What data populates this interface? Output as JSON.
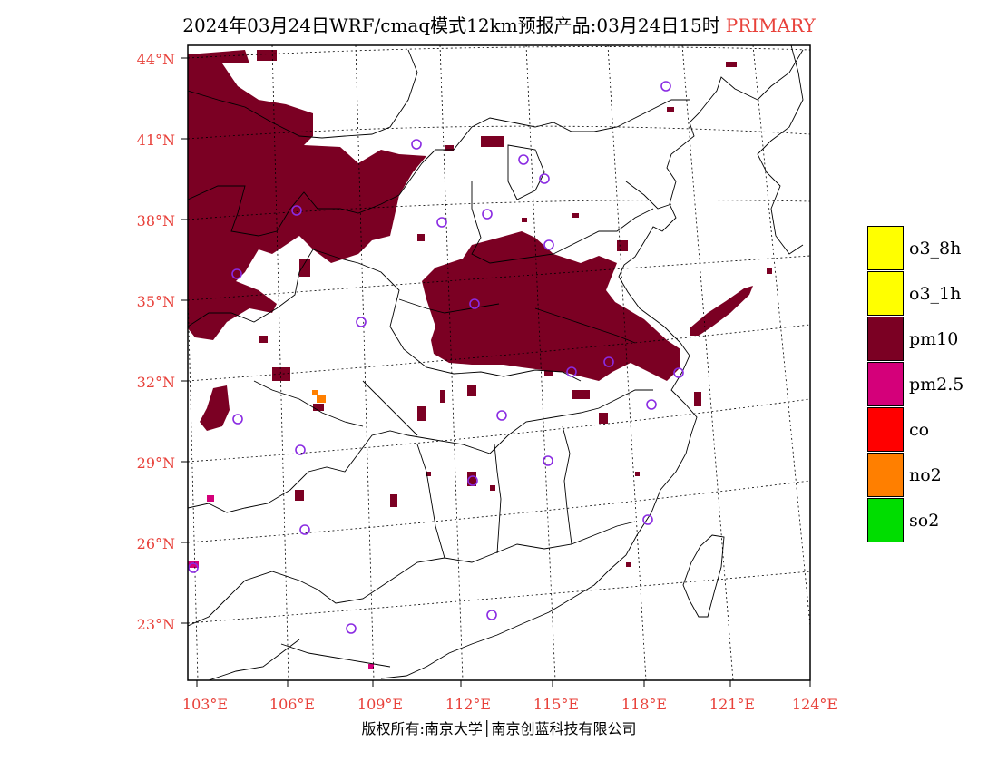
{
  "header": {
    "title": "2024年03月24日WRF/cmaq模式12km预报产品:03月24日15时",
    "tag": "PRIMARY",
    "tag_color": "#e8413a"
  },
  "axes": {
    "latitudes": [
      "44°N",
      "41°N",
      "38°N",
      "35°N",
      "32°N",
      "29°N",
      "26°N",
      "23°N"
    ],
    "longitudes": [
      "103°E",
      "106°E",
      "109°E",
      "112°E",
      "115°E",
      "118°E",
      "121°E",
      "124°E"
    ],
    "label_color": "#e8413a"
  },
  "legend": [
    {
      "label": "o3_8h",
      "color": "#ffff00"
    },
    {
      "label": "o3_1h",
      "color": "#ffff00"
    },
    {
      "label": "pm10",
      "color": "#7b0023"
    },
    {
      "label": "pm2.5",
      "color": "#d4007a"
    },
    {
      "label": "co",
      "color": "#ff0000"
    },
    {
      "label": "no2",
      "color": "#ff7f00"
    },
    {
      "label": "so2",
      "color": "#00dd00"
    }
  ],
  "footer": {
    "credit": "版权所有:南京大学│南京创蓝科技有限公司"
  }
}
